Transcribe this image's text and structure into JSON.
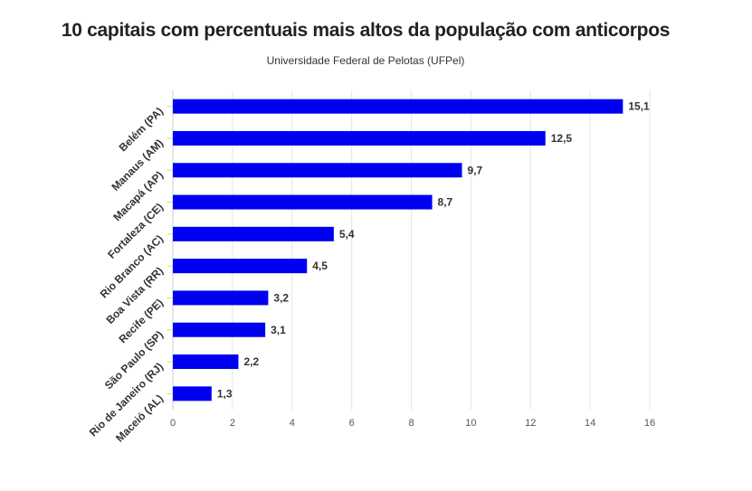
{
  "chart_data": {
    "type": "bar",
    "orientation": "horizontal",
    "title": "10 capitais com percentuais mais altos da população com anticorpos",
    "subtitle": "Universidade Federal de Pelotas (UFPel)",
    "categories": [
      "Belém (PA)",
      "Manaus (AM)",
      "Macapá (AP)",
      "Fortaleza (CE)",
      "Rio Branco (AC)",
      "Boa Vista (RR)",
      "Recife (PE)",
      "São Paulo (SP)",
      "Rio de Janeiro (RJ)",
      "Maceió (AL)"
    ],
    "values": [
      15.1,
      12.5,
      9.7,
      8.7,
      5.4,
      4.5,
      3.2,
      3.1,
      2.2,
      1.3
    ],
    "data_labels": [
      "15,1",
      "12,5",
      "9,7",
      "8,7",
      "5,4",
      "4,5",
      "3,2",
      "3,1",
      "2,2",
      "1,3"
    ],
    "xlim": [
      0,
      16
    ],
    "x_ticks": [
      0,
      2,
      4,
      6,
      8,
      10,
      12,
      14,
      16
    ],
    "x_tick_labels": [
      "0",
      "2",
      "4",
      "6",
      "8",
      "10",
      "12",
      "14",
      "16"
    ],
    "xlabel": "",
    "ylabel": "",
    "bar_color": "#0000f0",
    "grid": true,
    "legend": "none"
  }
}
